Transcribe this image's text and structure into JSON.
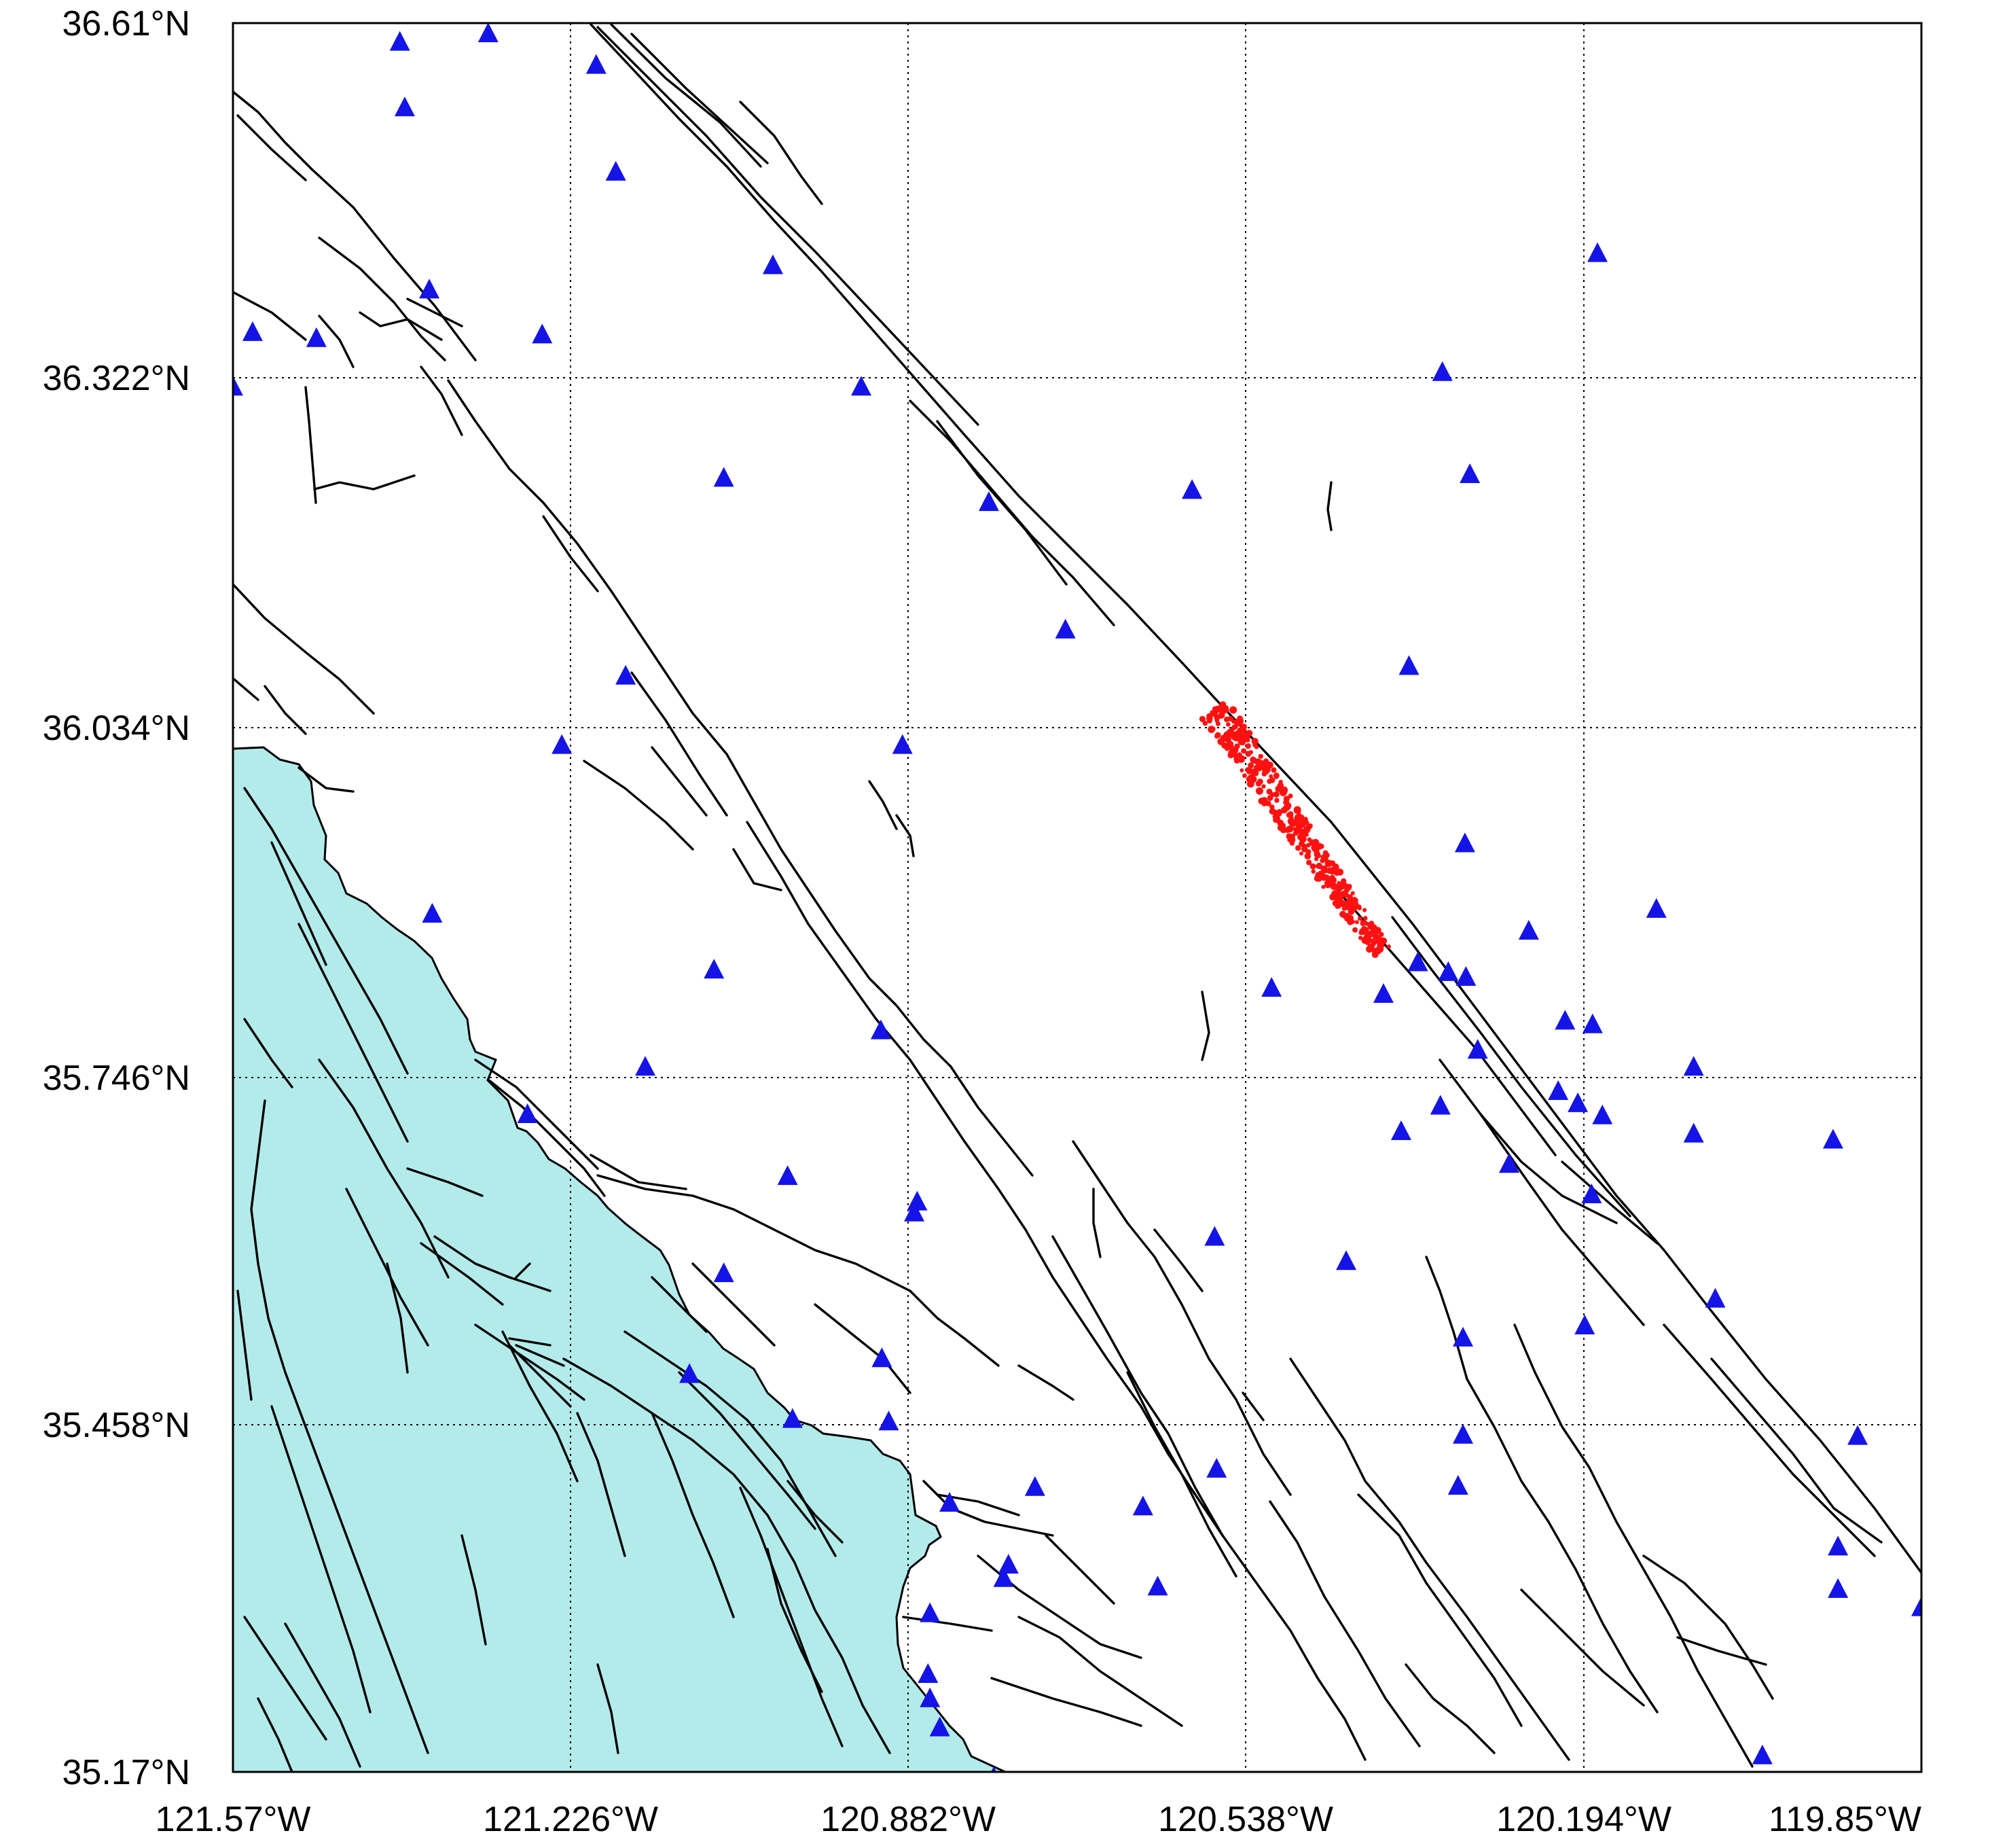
{
  "map": {
    "lon_range": [
      -121.57,
      -119.85
    ],
    "lat_range": [
      35.17,
      36.61
    ],
    "x_tick_labels": [
      "121.57°W",
      "121.226°W",
      "120.882°W",
      "120.538°W",
      "120.194°W",
      "119.85°W"
    ],
    "y_tick_labels": [
      "36.61°N",
      "36.322°N",
      "36.034°N",
      "35.746°N",
      "35.458°N",
      "35.17°N"
    ],
    "grid": "dotted",
    "colors": {
      "ocean": "#b3ebeb",
      "station": "#1414e6",
      "earthquake": "#ff1111",
      "fault": "#000000"
    },
    "layers": {
      "ocean": "coastal ocean area in lower-left",
      "faults": "black fault traces",
      "stations": "blue triangle seismic stations",
      "earthquakes": "red dot earthquake cluster along fault"
    },
    "stations": [
      [
        -121.4,
        36.594
      ],
      [
        -121.31,
        36.601
      ],
      [
        -121.395,
        36.54
      ],
      [
        -121.2,
        36.575
      ],
      [
        -121.18,
        36.487
      ],
      [
        -121.02,
        36.41
      ],
      [
        -121.37,
        36.39
      ],
      [
        -121.255,
        36.353
      ],
      [
        -121.55,
        36.355
      ],
      [
        -121.485,
        36.35
      ],
      [
        -121.57,
        36.31
      ],
      [
        -120.93,
        36.31
      ],
      [
        -121.07,
        36.235
      ],
      [
        -120.8,
        36.215
      ],
      [
        -120.593,
        36.225
      ],
      [
        -120.722,
        36.11
      ],
      [
        -121.17,
        36.072
      ],
      [
        -121.235,
        36.015
      ],
      [
        -120.888,
        36.015
      ],
      [
        -120.372,
        36.08
      ],
      [
        -120.18,
        36.42
      ],
      [
        -120.338,
        36.322
      ],
      [
        -120.31,
        36.238
      ],
      [
        -120.315,
        35.934
      ],
      [
        -121.367,
        35.876
      ],
      [
        -121.08,
        35.83
      ],
      [
        -120.512,
        35.815
      ],
      [
        -120.398,
        35.81
      ],
      [
        -120.332,
        35.828
      ],
      [
        -120.314,
        35.824
      ],
      [
        -120.363,
        35.836
      ],
      [
        -120.25,
        35.862
      ],
      [
        -120.213,
        35.788
      ],
      [
        -120.185,
        35.785
      ],
      [
        -120.12,
        35.88
      ],
      [
        -120.302,
        35.764
      ],
      [
        -120.91,
        35.78
      ],
      [
        -121.15,
        35.75
      ],
      [
        -120.34,
        35.718
      ],
      [
        -120.22,
        35.73
      ],
      [
        -120.2,
        35.72
      ],
      [
        -120.175,
        35.71
      ],
      [
        -120.082,
        35.75
      ],
      [
        -120.082,
        35.695
      ],
      [
        -119.94,
        35.69
      ],
      [
        -120.27,
        35.67
      ],
      [
        -120.38,
        35.697
      ],
      [
        -120.186,
        35.645
      ],
      [
        -121.27,
        35.711
      ],
      [
        -121.005,
        35.66
      ],
      [
        -120.873,
        35.639
      ],
      [
        -120.876,
        35.63
      ],
      [
        -120.57,
        35.61
      ],
      [
        -121.07,
        35.58
      ],
      [
        -120.436,
        35.59
      ],
      [
        -120.06,
        35.559
      ],
      [
        -120.317,
        35.527
      ],
      [
        -120.193,
        35.537
      ],
      [
        -121.105,
        35.497
      ],
      [
        -120.909,
        35.51
      ],
      [
        -121.0,
        35.46
      ],
      [
        -120.902,
        35.458
      ],
      [
        -120.317,
        35.447
      ],
      [
        -120.568,
        35.419
      ],
      [
        -120.322,
        35.405
      ],
      [
        -120.753,
        35.404
      ],
      [
        -120.84,
        35.391
      ],
      [
        -120.643,
        35.388
      ],
      [
        -119.915,
        35.446
      ],
      [
        -120.78,
        35.34
      ],
      [
        -120.785,
        35.329
      ],
      [
        -120.628,
        35.322
      ],
      [
        -120.86,
        35.3
      ],
      [
        -119.935,
        35.355
      ],
      [
        -119.935,
        35.32
      ],
      [
        -119.85,
        35.305
      ],
      [
        -120.862,
        35.25
      ],
      [
        -120.86,
        35.23
      ],
      [
        -120.85,
        35.206
      ],
      [
        -120.012,
        35.183
      ],
      [
        -120.795,
        35.165
      ]
    ],
    "earthquake_trace": [
      [
        -120.57,
        36.045
      ],
      [
        -120.4,
        35.845
      ]
    ]
  }
}
